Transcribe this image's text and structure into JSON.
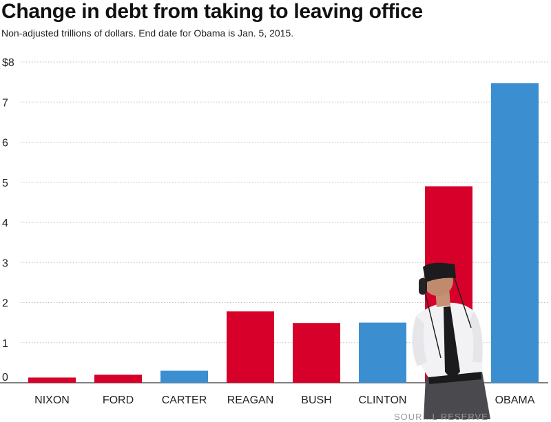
{
  "title": "Change in debt from taking to leaving office",
  "subtitle": "Non-adjusted trillions of dollars. End date for Obama is Jan. 5, 2015.",
  "source_text": "SOUR…L RESERVE",
  "colors": {
    "republican": "#d6002a",
    "democrat": "#3b8fd1",
    "grid": "#bdbdbd"
  },
  "chart_data": {
    "type": "bar",
    "title": "Change in debt from taking to leaving office",
    "subtitle": "Non-adjusted trillions of dollars. End date for Obama is Jan. 5, 2015.",
    "xlabel": "",
    "ylabel": "",
    "ylim": [
      0,
      8
    ],
    "yticks": [
      0,
      1,
      2,
      3,
      4,
      5,
      6,
      7,
      8
    ],
    "ytick_labels": [
      "0",
      "1",
      "2",
      "3",
      "4",
      "5",
      "6",
      "7",
      "$8"
    ],
    "grid": true,
    "categories": [
      "NIXON",
      "FORD",
      "CARTER",
      "REAGAN",
      "BUSH",
      "CLINTON",
      "",
      "OBAMA"
    ],
    "values": [
      0.13,
      0.2,
      0.3,
      1.78,
      1.49,
      1.5,
      4.9,
      7.47
    ],
    "bar_colors": [
      "#d6002a",
      "#d6002a",
      "#3b8fd1",
      "#d6002a",
      "#d6002a",
      "#3b8fd1",
      "#d6002a",
      "#3b8fd1"
    ]
  }
}
